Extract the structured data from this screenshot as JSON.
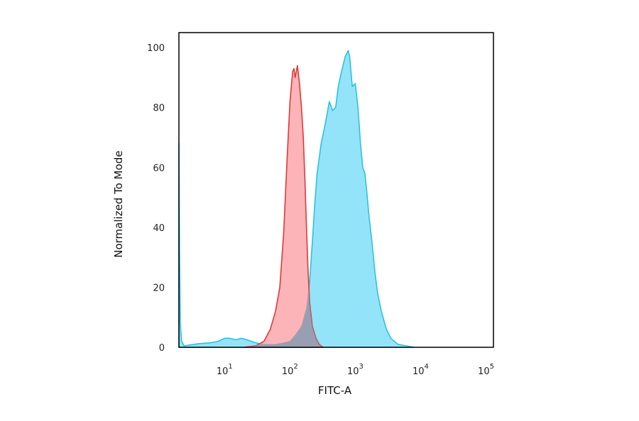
{
  "chart_data": {
    "type": "area",
    "xlabel": "FITC-A",
    "ylabel": "Normalized To Mode",
    "x_scale": "log",
    "xlim": [
      2,
      130000
    ],
    "ylim": [
      0,
      105
    ],
    "y_ticks": [
      0,
      20,
      40,
      60,
      80,
      100
    ],
    "x_ticks": [
      {
        "value": 10,
        "base": "10",
        "exp": "1"
      },
      {
        "value": 100,
        "base": "10",
        "exp": "2"
      },
      {
        "value": 1000,
        "base": "10",
        "exp": "3"
      },
      {
        "value": 10000,
        "base": "10",
        "exp": "4"
      },
      {
        "value": 100000,
        "base": "10",
        "exp": "5"
      }
    ],
    "grid": false,
    "series": [
      {
        "fill": "#fda4a8",
        "stroke": "#dc3a3a",
        "points": [
          [
            20,
            0
          ],
          [
            30,
            0.5
          ],
          [
            40,
            2
          ],
          [
            50,
            6
          ],
          [
            60,
            12
          ],
          [
            70,
            20
          ],
          [
            80,
            38
          ],
          [
            90,
            62
          ],
          [
            100,
            82
          ],
          [
            110,
            92
          ],
          [
            115,
            93
          ],
          [
            120,
            90
          ],
          [
            130,
            94
          ],
          [
            140,
            88
          ],
          [
            150,
            80
          ],
          [
            160,
            70
          ],
          [
            170,
            55
          ],
          [
            180,
            38
          ],
          [
            190,
            25
          ],
          [
            200,
            15
          ],
          [
            220,
            7
          ],
          [
            250,
            3
          ],
          [
            280,
            1
          ],
          [
            320,
            0
          ]
        ]
      },
      {
        "fill": "#93e4f8",
        "stroke": "#2ec1df",
        "points": [
          [
            2,
            68
          ],
          [
            2.05,
            30
          ],
          [
            2.1,
            8
          ],
          [
            2.2,
            2
          ],
          [
            2.4,
            0.5
          ],
          [
            3,
            0.8
          ],
          [
            4,
            1.2
          ],
          [
            6,
            1.5
          ],
          [
            8,
            2
          ],
          [
            10,
            3
          ],
          [
            12,
            3
          ],
          [
            15,
            2.5
          ],
          [
            18,
            3
          ],
          [
            22,
            2.5
          ],
          [
            30,
            1.5
          ],
          [
            40,
            1
          ],
          [
            60,
            1
          ],
          [
            80,
            1.5
          ],
          [
            100,
            2
          ],
          [
            120,
            4
          ],
          [
            150,
            7
          ],
          [
            180,
            13
          ],
          [
            200,
            22
          ],
          [
            220,
            35
          ],
          [
            240,
            48
          ],
          [
            260,
            58
          ],
          [
            280,
            63
          ],
          [
            300,
            68
          ],
          [
            350,
            75
          ],
          [
            400,
            82
          ],
          [
            450,
            79
          ],
          [
            500,
            80
          ],
          [
            550,
            87
          ],
          [
            600,
            91
          ],
          [
            700,
            97
          ],
          [
            780,
            99
          ],
          [
            820,
            97
          ],
          [
            900,
            87
          ],
          [
            1000,
            88
          ],
          [
            1100,
            80
          ],
          [
            1200,
            68
          ],
          [
            1300,
            60
          ],
          [
            1400,
            58
          ],
          [
            1500,
            52
          ],
          [
            1600,
            45
          ],
          [
            1800,
            35
          ],
          [
            2000,
            25
          ],
          [
            2200,
            18
          ],
          [
            2500,
            12
          ],
          [
            3000,
            6
          ],
          [
            3500,
            3
          ],
          [
            4500,
            1
          ],
          [
            6000,
            0.5
          ],
          [
            8000,
            0
          ]
        ]
      }
    ]
  }
}
